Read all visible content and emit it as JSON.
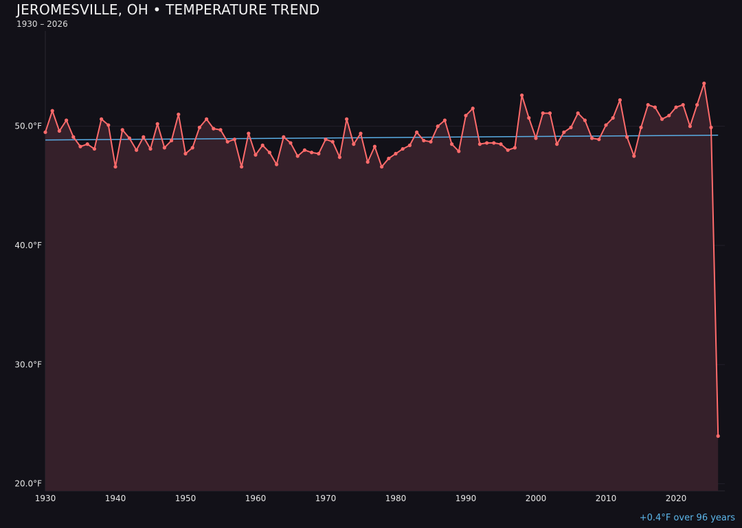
{
  "chart_data": {
    "type": "line",
    "title": "JEROMESVILLE, OH • TEMPERATURE TREND",
    "subtitle": "1930 – 2026",
    "annotation": "+0.4°F over 96 years",
    "xlim": [
      1930,
      2027
    ],
    "ylim": [
      19.4,
      58
    ],
    "x_ticks": [
      1930,
      1940,
      1950,
      1960,
      1970,
      1980,
      1990,
      2000,
      2010,
      2020
    ],
    "y_ticks": [
      20,
      30,
      40,
      50
    ],
    "y_tick_labels": [
      "20.0°F",
      "30.0°F",
      "40.0°F",
      "50.0°F"
    ],
    "grid": true,
    "colors": {
      "line": "#ff6b6b",
      "fill": "#35202a",
      "trend": "#5aaee6",
      "background": "#121118"
    },
    "x": [
      1930,
      1931,
      1932,
      1933,
      1934,
      1935,
      1936,
      1937,
      1938,
      1939,
      1940,
      1941,
      1942,
      1943,
      1944,
      1945,
      1946,
      1947,
      1948,
      1949,
      1950,
      1951,
      1952,
      1953,
      1954,
      1955,
      1956,
      1957,
      1958,
      1959,
      1960,
      1961,
      1962,
      1963,
      1964,
      1965,
      1966,
      1967,
      1968,
      1969,
      1970,
      1971,
      1972,
      1973,
      1974,
      1975,
      1976,
      1977,
      1978,
      1979,
      1980,
      1981,
      1982,
      1983,
      1984,
      1985,
      1986,
      1987,
      1988,
      1989,
      1990,
      1991,
      1992,
      1993,
      1994,
      1995,
      1996,
      1997,
      1998,
      1999,
      2000,
      2001,
      2002,
      2003,
      2004,
      2005,
      2006,
      2007,
      2008,
      2009,
      2010,
      2011,
      2012,
      2013,
      2014,
      2015,
      2016,
      2017,
      2018,
      2019,
      2020,
      2021,
      2022,
      2023,
      2024,
      2025,
      2026
    ],
    "values": [
      49.5,
      51.3,
      49.6,
      50.5,
      49.1,
      48.3,
      48.5,
      48.1,
      50.6,
      50.1,
      46.6,
      49.7,
      49.0,
      48.0,
      49.1,
      48.1,
      50.2,
      48.2,
      48.8,
      51.0,
      47.7,
      48.2,
      49.9,
      50.6,
      49.8,
      49.7,
      48.7,
      48.9,
      46.6,
      49.4,
      47.6,
      48.4,
      47.8,
      46.8,
      49.1,
      48.6,
      47.5,
      48.0,
      47.8,
      47.7,
      48.9,
      48.7,
      47.4,
      50.6,
      48.5,
      49.4,
      47.0,
      48.3,
      46.6,
      47.3,
      47.7,
      48.1,
      48.4,
      49.5,
      48.8,
      48.7,
      50.0,
      50.5,
      48.5,
      47.9,
      50.9,
      51.5,
      48.5,
      48.6,
      48.6,
      48.5,
      48.0,
      48.2,
      52.6,
      50.7,
      49.0,
      51.1,
      51.1,
      48.5,
      49.5,
      49.9,
      51.1,
      50.5,
      49.0,
      48.9,
      50.1,
      50.7,
      52.2,
      49.1,
      47.5,
      49.9,
      51.8,
      51.6,
      50.6,
      50.9,
      51.6,
      51.8,
      50.0,
      51.8,
      53.6,
      49.9,
      24.0
    ],
    "trend": {
      "x": [
        1930,
        2026
      ],
      "y": [
        48.85,
        49.25
      ]
    }
  }
}
